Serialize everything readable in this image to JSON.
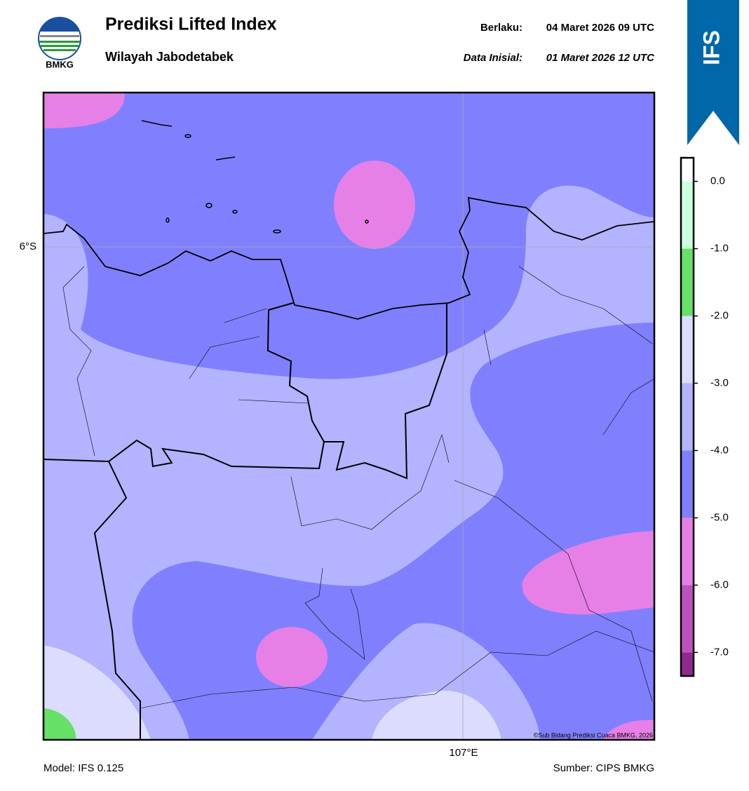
{
  "header": {
    "title": "Prediksi Lifted Index",
    "subtitle": "Wilayah Jabodetabek",
    "valid_label": "Berlaku:",
    "valid": "04 Maret 2026 09 UTC",
    "init_label": "Data Inisial:",
    "init": "01 Maret 2026 12 UTC"
  },
  "logo": "BMKG",
  "badge": "IFS",
  "map": {
    "lat_label": "6°S",
    "lon_label": "107°E",
    "credit": "©Sub Bidang Prediksi Cuaca BMKG, 2026"
  },
  "colorbar": {
    "lim": [
      -7.35,
      0.35
    ],
    "ticks": [
      {
        "value": 0,
        "label": "0.0"
      },
      {
        "value": -1,
        "label": "-1.0"
      },
      {
        "value": -2,
        "label": "-2.0"
      },
      {
        "value": -3,
        "label": "-3.0"
      },
      {
        "value": -4,
        "label": "-4.0"
      },
      {
        "value": -5,
        "label": "-5.0"
      },
      {
        "value": -6,
        "label": "-6.0"
      },
      {
        "value": -7,
        "label": "-7.0"
      }
    ],
    "colors": [
      "#902890",
      "#c050c0",
      "#e680e6",
      "#8080ff",
      "#b3b3ff",
      "#dcdcff",
      "#66e066",
      "#ccffdd",
      "#ffffff"
    ]
  },
  "footer": {
    "model": "Model: IFS 0.125",
    "source": "Sumber: CIPS BMKG"
  }
}
